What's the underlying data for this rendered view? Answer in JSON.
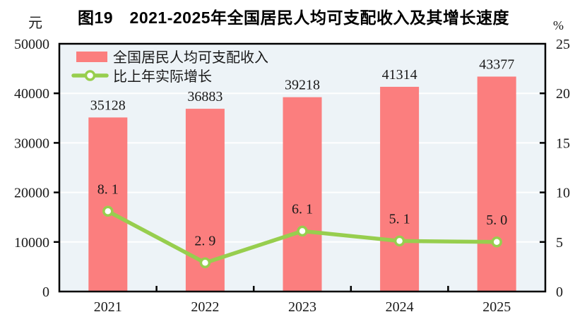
{
  "chart_data": {
    "type": "bar",
    "combo": "bar+line",
    "title": "图19　2021-2025年全国居民人均可支配收入及其增长速度",
    "categories": [
      "2021",
      "2022",
      "2023",
      "2024",
      "2025"
    ],
    "series": [
      {
        "name": "全国居民人均可支配收入",
        "type": "bar",
        "axis": "left",
        "unit": "元",
        "color": "#FB7E7E",
        "values": [
          35128,
          36883,
          39218,
          41314,
          43377
        ],
        "labels": [
          "35128",
          "36883",
          "39218",
          "41314",
          "43377"
        ]
      },
      {
        "name": "比上年实际增长",
        "type": "line",
        "axis": "right",
        "unit": "%",
        "color": "#97CE4E",
        "marker": "white-circle",
        "values": [
          8.1,
          2.9,
          6.1,
          5.1,
          5.0
        ],
        "labels": [
          "8. 1",
          "2. 9",
          "6. 1",
          "5. 1",
          "5. 0"
        ]
      }
    ],
    "left_axis": {
      "unit": "元",
      "min": 0,
      "max": 50000,
      "ticks": [
        0,
        10000,
        20000,
        30000,
        40000,
        50000
      ]
    },
    "right_axis": {
      "unit": "%",
      "min": 0,
      "max": 25,
      "ticks": [
        0,
        5,
        10,
        15,
        20,
        25
      ]
    },
    "x_axis": {
      "labels": [
        "2021",
        "2022",
        "2023",
        "2024",
        "2025"
      ]
    },
    "legend": {
      "position": "top-left",
      "items": [
        "全国居民人均可支配收入",
        "比上年实际增长"
      ]
    },
    "style": {
      "plot_background": "#EDF3F7",
      "grid_color": "#FFFFFF",
      "axis_color": "#000000",
      "text_color": "#1A1A1A",
      "grid": "horizontal"
    }
  }
}
